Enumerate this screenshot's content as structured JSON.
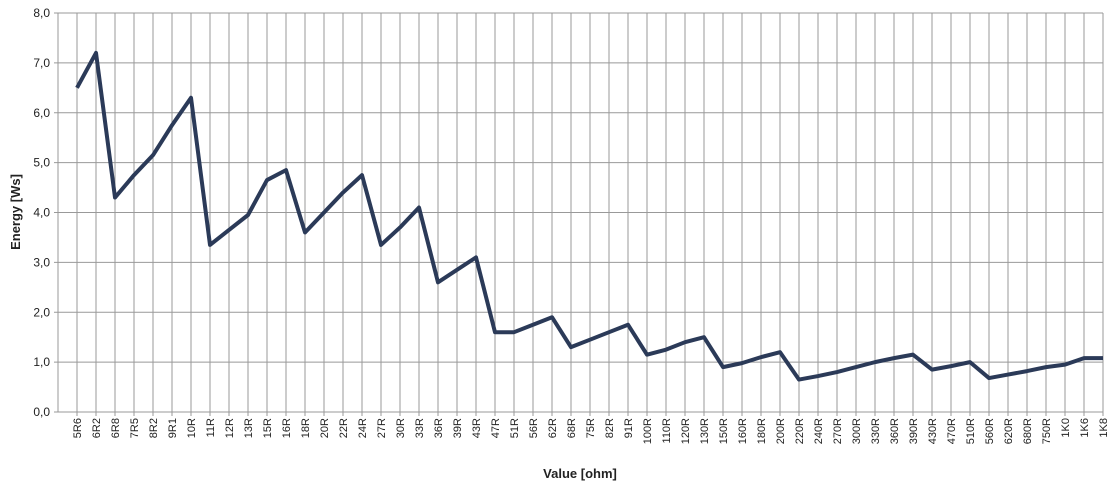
{
  "chart_data": {
    "type": "line",
    "xlabel": "Value [ohm]",
    "ylabel": "Energy [Ws]",
    "categories": [
      "5R6",
      "6R2",
      "6R8",
      "7R5",
      "8R2",
      "9R1",
      "10R",
      "11R",
      "12R",
      "13R",
      "15R",
      "16R",
      "18R",
      "20R",
      "22R",
      "24R",
      "27R",
      "30R",
      "33R",
      "36R",
      "39R",
      "43R",
      "47R",
      "51R",
      "56R",
      "62R",
      "68R",
      "75R",
      "82R",
      "91R",
      "100R",
      "110R",
      "120R",
      "130R",
      "150R",
      "160R",
      "180R",
      "200R",
      "220R",
      "240R",
      "270R",
      "300R",
      "330R",
      "360R",
      "390R",
      "430R",
      "470R",
      "510R",
      "560R",
      "620R",
      "680R",
      "750R",
      "1K0",
      "1K6",
      "1K8"
    ],
    "series": [
      {
        "name": "Energy",
        "color": "#2b3a58",
        "values": [
          6.5,
          7.2,
          4.3,
          4.75,
          5.15,
          5.75,
          6.3,
          3.35,
          3.65,
          3.95,
          4.65,
          4.85,
          3.6,
          4.0,
          4.4,
          4.75,
          3.35,
          3.7,
          4.1,
          2.6,
          2.85,
          3.1,
          1.6,
          1.6,
          1.75,
          1.9,
          1.3,
          1.45,
          1.6,
          1.75,
          1.15,
          1.25,
          1.4,
          1.5,
          0.9,
          0.98,
          1.1,
          1.2,
          0.65,
          0.72,
          0.8,
          0.9,
          1.0,
          1.08,
          1.15,
          0.85,
          0.92,
          1.0,
          0.68,
          0.75,
          0.82,
          0.9,
          0.95,
          1.08,
          1.08
        ]
      }
    ],
    "ylim": [
      0,
      8
    ],
    "yticks": [
      {
        "value": 0,
        "label": "0,0"
      },
      {
        "value": 1,
        "label": "1,0"
      },
      {
        "value": 2,
        "label": "2,0"
      },
      {
        "value": 3,
        "label": "3,0"
      },
      {
        "value": 4,
        "label": "4,0"
      },
      {
        "value": 5,
        "label": "5,0"
      },
      {
        "value": 6,
        "label": "6,0"
      },
      {
        "value": 7,
        "label": "7,0"
      },
      {
        "value": 8,
        "label": "8,0"
      }
    ],
    "grid": true
  }
}
